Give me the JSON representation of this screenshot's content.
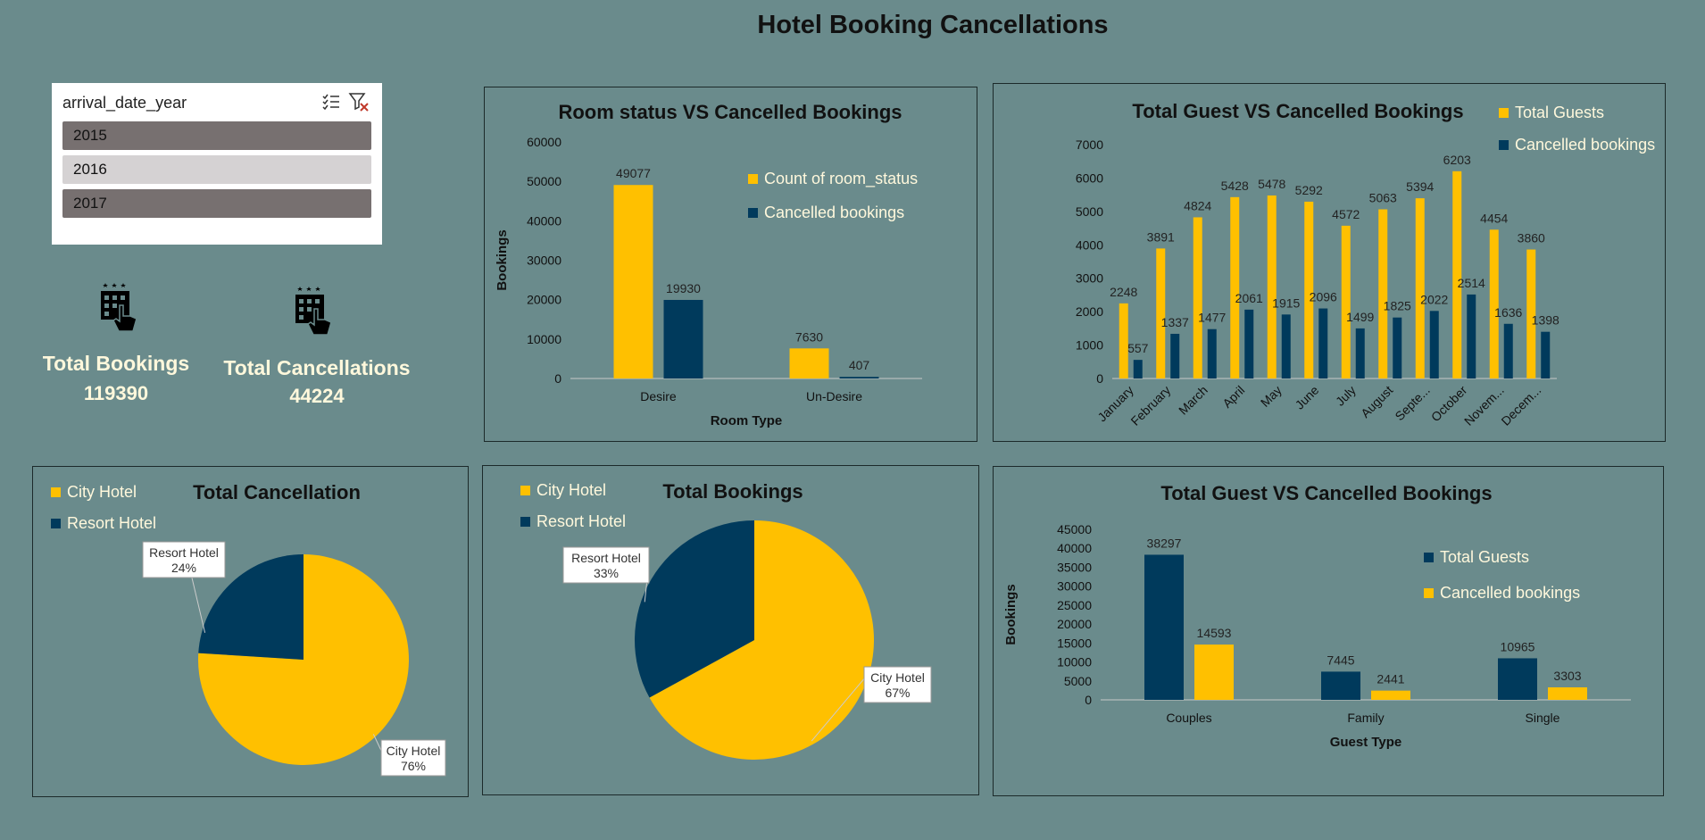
{
  "title": "Hotel Booking Cancellations",
  "colors": {
    "background": "#6a8b8c",
    "yellow": "#ffc000",
    "navy": "#003a5c",
    "cream": "#fff8dc"
  },
  "slicer": {
    "title": "arrival_date_year",
    "icons": [
      "multi-select-icon",
      "clear-filter-icon"
    ],
    "items": [
      {
        "label": "2015",
        "selected": true
      },
      {
        "label": "2016",
        "selected": false
      },
      {
        "label": "2017",
        "selected": true
      }
    ]
  },
  "kpis": {
    "bookings": {
      "label": "Total Bookings",
      "value": "119390",
      "icon": "hotel-click-icon"
    },
    "cancellations": {
      "label": "Total Cancellations",
      "value": "44224",
      "icon": "hotel-click-icon"
    }
  },
  "chart_data": [
    {
      "id": "room",
      "type": "bar",
      "title": "Room status VS Cancelled Bookings",
      "xlabel": "Room Type",
      "ylabel": "Bookings",
      "categories": [
        "Desire",
        "Un-Desire"
      ],
      "series": [
        {
          "name": "Count of room_status",
          "values": [
            49077,
            7630
          ],
          "color": "#ffc000"
        },
        {
          "name": "Cancelled bookings",
          "values": [
            19930,
            407
          ],
          "color": "#003a5c"
        }
      ],
      "ylim": [
        0,
        60000
      ],
      "yticks": [
        0,
        10000,
        20000,
        30000,
        40000,
        50000,
        60000
      ],
      "legend": "right",
      "grid": false
    },
    {
      "id": "month",
      "type": "bar",
      "title": "Total Guest VS Cancelled Bookings",
      "xlabel": "",
      "ylabel": "",
      "categories": [
        "January",
        "February",
        "March",
        "April",
        "May",
        "June",
        "July",
        "August",
        "Septe...",
        "October",
        "Novem...",
        "Decem..."
      ],
      "series": [
        {
          "name": "Total Guests",
          "values": [
            2248,
            3891,
            4824,
            5428,
            5478,
            5292,
            4572,
            5063,
            5394,
            6203,
            4454,
            3860
          ],
          "color": "#ffc000"
        },
        {
          "name": "Cancelled bookings",
          "values": [
            557,
            1337,
            1477,
            2061,
            1915,
            2096,
            1499,
            1825,
            2022,
            2514,
            1636,
            1398
          ],
          "color": "#003a5c"
        }
      ],
      "ylim": [
        0,
        7000
      ],
      "yticks": [
        0,
        1000,
        2000,
        3000,
        4000,
        5000,
        6000,
        7000
      ],
      "legend": "top-right",
      "grid": false
    },
    {
      "id": "pie-cancel",
      "type": "pie",
      "title": "Total Cancellation",
      "slices": [
        {
          "name": "City Hotel",
          "label": "City Hotel",
          "pct_label": "76%",
          "value": 76,
          "color": "#ffc000"
        },
        {
          "name": "Resort Hotel",
          "label": "Resort Hotel",
          "pct_label": "24%",
          "value": 24,
          "color": "#003a5c"
        }
      ],
      "legend": "top-left"
    },
    {
      "id": "pie-bookings",
      "type": "pie",
      "title": "Total Bookings",
      "slices": [
        {
          "name": "City Hotel",
          "label": "City Hotel",
          "pct_label": "67%",
          "value": 67,
          "color": "#ffc000"
        },
        {
          "name": "Resort Hotel",
          "label": "Resort Hotel",
          "pct_label": "33%",
          "value": 33,
          "color": "#003a5c"
        }
      ],
      "legend": "top-left"
    },
    {
      "id": "guesttype",
      "type": "bar",
      "title": "Total Guest VS Cancelled Bookings",
      "xlabel": "Guest Type",
      "ylabel": "Bookings",
      "categories": [
        "Couples",
        "Family",
        "Single"
      ],
      "series": [
        {
          "name": "Total Guests",
          "values": [
            38297,
            7445,
            10965
          ],
          "color": "#003a5c"
        },
        {
          "name": "Cancelled bookings",
          "values": [
            14593,
            2441,
            3303
          ],
          "color": "#ffc000"
        }
      ],
      "ylim": [
        0,
        45000
      ],
      "yticks": [
        0,
        5000,
        10000,
        15000,
        20000,
        25000,
        30000,
        35000,
        40000,
        45000
      ],
      "legend": "right",
      "grid": false
    }
  ]
}
